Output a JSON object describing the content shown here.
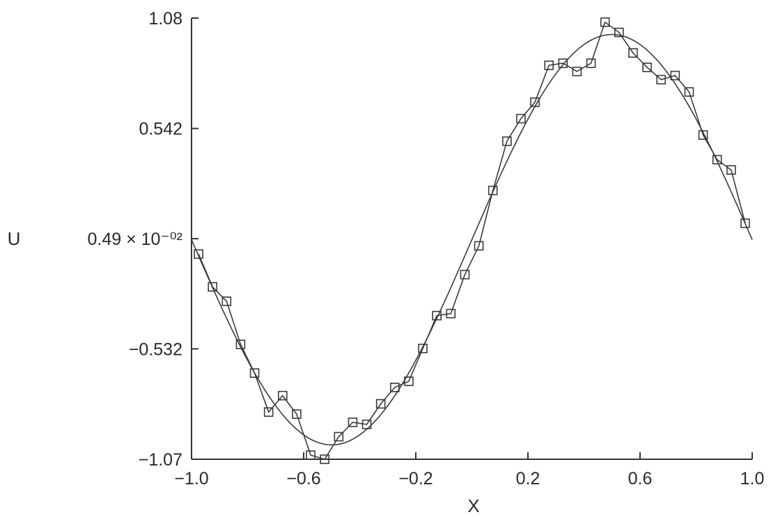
{
  "chart_data": {
    "type": "line",
    "xlabel": "X",
    "ylabel": "U",
    "xlim": [
      -1.0,
      1.0
    ],
    "ylim": [
      -1.07,
      1.08
    ],
    "x_ticks": [
      {
        "value": -1.0,
        "label": "−1.0"
      },
      {
        "value": -0.6,
        "label": "−0.6"
      },
      {
        "value": -0.2,
        "label": "−0.2"
      },
      {
        "value": 0.2,
        "label": "0.2"
      },
      {
        "value": 0.6,
        "label": "0.6"
      },
      {
        "value": 1.0,
        "label": "1.0"
      }
    ],
    "y_ticks": [
      {
        "value": 1.08,
        "label": "1.08"
      },
      {
        "value": 0.542,
        "label": "0.542"
      },
      {
        "value": 0.0049,
        "label": "0.49 × 10⁻⁰²"
      },
      {
        "value": -0.532,
        "label": "−0.532"
      },
      {
        "value": -1.07,
        "label": "−1.07"
      }
    ],
    "grid": false,
    "series": [
      {
        "marker": "square",
        "x": [
          -0.975,
          -0.925,
          -0.875,
          -0.825,
          -0.775,
          -0.725,
          -0.675,
          -0.625,
          -0.575,
          -0.525,
          -0.475,
          -0.425,
          -0.375,
          -0.325,
          -0.275,
          -0.225,
          -0.175,
          -0.125,
          -0.075,
          -0.025,
          0.025,
          0.075,
          0.125,
          0.175,
          0.225,
          0.275,
          0.325,
          0.375,
          0.425,
          0.475,
          0.525,
          0.575,
          0.625,
          0.675,
          0.725,
          0.775,
          0.825,
          0.875,
          0.925,
          0.975
        ],
        "y": [
          -0.07,
          -0.23,
          -0.3,
          -0.51,
          -0.65,
          -0.84,
          -0.76,
          -0.85,
          -1.05,
          -1.07,
          -0.96,
          -0.89,
          -0.9,
          -0.8,
          -0.72,
          -0.69,
          -0.53,
          -0.37,
          -0.36,
          -0.17,
          -0.03,
          0.24,
          0.48,
          0.59,
          0.67,
          0.85,
          0.86,
          0.82,
          0.86,
          1.06,
          1.01,
          0.91,
          0.84,
          0.78,
          0.8,
          0.72,
          0.51,
          0.39,
          0.34,
          0.08
        ]
      },
      {
        "marker": "none",
        "function": "sin(pi*x)",
        "x_range": [
          -1.0,
          1.0
        ]
      }
    ]
  }
}
